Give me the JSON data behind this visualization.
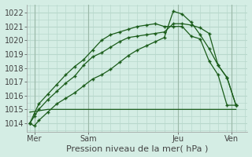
{
  "bg_color": "#d4ede4",
  "grid_color": "#b8d8cc",
  "line_color": "#1a5c1a",
  "axis_color": "#888888",
  "tick_color": "#444444",
  "title": "Pression niveau de la mer( hPa )",
  "ylabel_values": [
    1014,
    1015,
    1016,
    1017,
    1018,
    1019,
    1020,
    1021,
    1022
  ],
  "ylim": [
    1013.4,
    1022.6
  ],
  "xlim": [
    -0.3,
    24.3
  ],
  "xtick_labels": [
    "Mer",
    "Sam",
    "Jeu",
    "Ven"
  ],
  "xtick_positions": [
    0.5,
    6.5,
    16.5,
    22.5
  ],
  "vline_positions": [
    0.5,
    6.5,
    16.5,
    22.5
  ],
  "total_points": 25,
  "line1_x": [
    0,
    0.5,
    1,
    2,
    3,
    4,
    5,
    6,
    7,
    8,
    9,
    10,
    11,
    12,
    13,
    14,
    15,
    16,
    17,
    18,
    19,
    20,
    21,
    22,
    23
  ],
  "line1_y": [
    1014.0,
    1013.8,
    1014.2,
    1014.8,
    1015.4,
    1015.8,
    1016.2,
    1016.7,
    1017.2,
    1017.5,
    1017.9,
    1018.4,
    1018.9,
    1019.3,
    1019.6,
    1019.9,
    1020.2,
    1022.1,
    1021.9,
    1021.3,
    1020.4,
    1019.4,
    1018.2,
    1017.3,
    1015.3
  ],
  "line2_x": [
    0,
    0.5,
    1,
    2,
    3,
    4,
    5,
    6,
    7,
    8,
    9,
    10,
    11,
    12,
    13,
    14,
    15,
    16,
    17,
    18,
    19,
    20,
    21,
    22,
    23
  ],
  "line2_y": [
    1014.0,
    1014.5,
    1015.0,
    1015.7,
    1016.3,
    1016.9,
    1017.4,
    1018.2,
    1018.8,
    1019.1,
    1019.5,
    1019.9,
    1020.2,
    1020.3,
    1020.4,
    1020.5,
    1020.6,
    1021.2,
    1021.2,
    1021.1,
    1020.9,
    1020.5,
    1018.2,
    1017.3,
    1015.3
  ],
  "line3_x": [
    0,
    0.5,
    1,
    2,
    3,
    4,
    5,
    6,
    7,
    8,
    9,
    10,
    11,
    12,
    13,
    14,
    15,
    16,
    17,
    18,
    19,
    20,
    21,
    22,
    23
  ],
  "line3_y": [
    1014.0,
    1014.7,
    1015.4,
    1016.1,
    1016.8,
    1017.5,
    1018.1,
    1018.6,
    1019.3,
    1020.0,
    1020.4,
    1020.6,
    1020.8,
    1021.0,
    1021.1,
    1021.2,
    1021.0,
    1021.0,
    1021.0,
    1020.3,
    1020.1,
    1018.5,
    1017.5,
    1015.3,
    1015.3
  ],
  "line4_x": [
    0,
    1,
    2,
    3,
    4,
    5,
    6,
    7,
    8,
    9,
    10,
    11,
    12,
    13,
    14,
    15,
    16,
    17,
    18,
    19,
    20,
    21,
    22,
    23
  ],
  "line4_y": [
    1014.8,
    1014.9,
    1015.0,
    1015.0,
    1015.0,
    1015.0,
    1015.0,
    1015.0,
    1015.0,
    1015.0,
    1015.0,
    1015.0,
    1015.0,
    1015.0,
    1015.0,
    1015.0,
    1015.0,
    1015.0,
    1015.0,
    1015.0,
    1015.0,
    1015.0,
    1015.0,
    1015.0
  ],
  "title_fontsize": 8,
  "tick_fontsize": 7
}
